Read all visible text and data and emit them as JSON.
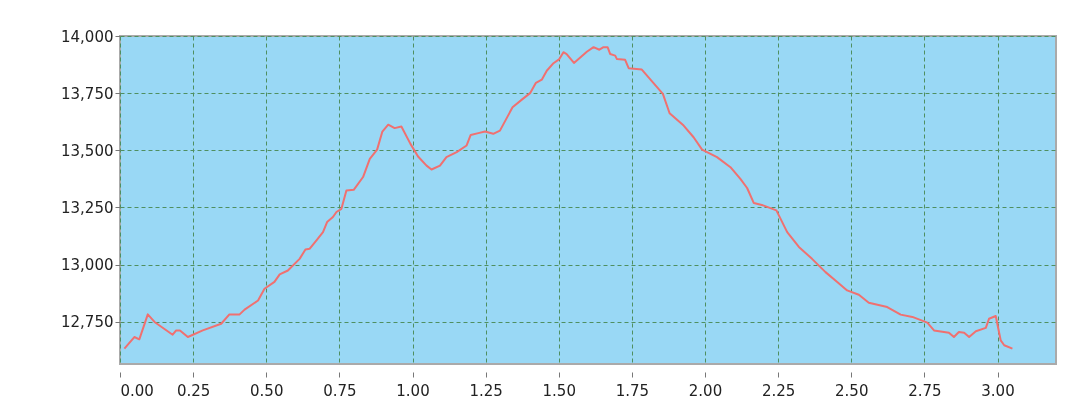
{
  "chart_data": {
    "type": "line",
    "x": [
      0.015,
      0.049,
      0.066,
      0.095,
      0.118,
      0.18,
      0.192,
      0.205,
      0.232,
      0.283,
      0.346,
      0.374,
      0.409,
      0.426,
      0.472,
      0.494,
      0.528,
      0.546,
      0.574,
      0.614,
      0.634,
      0.648,
      0.671,
      0.694,
      0.708,
      0.728,
      0.74,
      0.757,
      0.774,
      0.799,
      0.831,
      0.854,
      0.879,
      0.897,
      0.917,
      0.939,
      0.962,
      0.993,
      1.019,
      1.048,
      1.065,
      1.094,
      1.116,
      1.151,
      1.185,
      1.199,
      1.225,
      1.248,
      1.276,
      1.299,
      1.342,
      1.377,
      1.402,
      1.422,
      1.442,
      1.459,
      1.482,
      1.502,
      1.516,
      1.527,
      1.552,
      1.596,
      1.619,
      1.639,
      1.653,
      1.667,
      1.676,
      1.693,
      1.699,
      1.727,
      1.739,
      1.784,
      1.856,
      1.879,
      1.927,
      1.961,
      1.99,
      2.041,
      2.087,
      2.121,
      2.144,
      2.167,
      2.201,
      2.244,
      2.281,
      2.321,
      2.366,
      2.412,
      2.452,
      2.486,
      2.526,
      2.56,
      2.623,
      2.669,
      2.709,
      2.76,
      2.783,
      2.834,
      2.851,
      2.868,
      2.886,
      2.903,
      2.926,
      2.96,
      2.971,
      2.994,
      3.011,
      3.023,
      3.051
    ],
    "series": [
      {
        "color": "#f07070",
        "values": [
          12632,
          12683,
          12673,
          12782,
          12749,
          12693,
          12712,
          12712,
          12683,
          12712,
          12741,
          12782,
          12782,
          12803,
          12843,
          12894,
          12924,
          12957,
          12974,
          13025,
          13066,
          13069,
          13105,
          13142,
          13186,
          13208,
          13230,
          13244,
          13324,
          13327,
          13383,
          13462,
          13503,
          13582,
          13612,
          13597,
          13604,
          13528,
          13473,
          13433,
          13416,
          13433,
          13470,
          13492,
          13521,
          13567,
          13575,
          13582,
          13572,
          13586,
          13688,
          13725,
          13750,
          13795,
          13809,
          13848,
          13881,
          13899,
          13929,
          13921,
          13882,
          13931,
          13951,
          13940,
          13951,
          13951,
          13921,
          13914,
          13899,
          13896,
          13859,
          13853,
          13747,
          13662,
          13608,
          13557,
          13503,
          13470,
          13426,
          13375,
          13335,
          13269,
          13258,
          13237,
          13142,
          13077,
          13025,
          12967,
          12924,
          12887,
          12868,
          12833,
          12814,
          12781,
          12771,
          12746,
          12712,
          12702,
          12683,
          12705,
          12702,
          12683,
          12708,
          12723,
          12763,
          12775,
          12668,
          12647,
          12632
        ]
      }
    ],
    "xlim": [
      0,
      3.2
    ],
    "ylim": [
      12565,
      14000
    ],
    "xticks": [
      {
        "value": 0,
        "label": "0.00"
      },
      {
        "value": 0.25,
        "label": "0.25"
      },
      {
        "value": 0.5,
        "label": "0.50"
      },
      {
        "value": 0.75,
        "label": "0.75"
      },
      {
        "value": 1,
        "label": "1.00"
      },
      {
        "value": 1.25,
        "label": "1.25"
      },
      {
        "value": 1.5,
        "label": "1.50"
      },
      {
        "value": 1.75,
        "label": "1.75"
      },
      {
        "value": 2,
        "label": "2.00"
      },
      {
        "value": 2.25,
        "label": "2.25"
      },
      {
        "value": 2.5,
        "label": "2.50"
      },
      {
        "value": 2.75,
        "label": "2.75"
      },
      {
        "value": 3,
        "label": "3.00"
      }
    ],
    "yticks": [
      {
        "value": 12750,
        "label": "12,750"
      },
      {
        "value": 13000,
        "label": "13,000"
      },
      {
        "value": 13250,
        "label": "13,250"
      },
      {
        "value": 13500,
        "label": "13,500"
      },
      {
        "value": 13750,
        "label": "13,750"
      },
      {
        "value": 14000,
        "label": "14,000"
      }
    ],
    "grid": true
  }
}
